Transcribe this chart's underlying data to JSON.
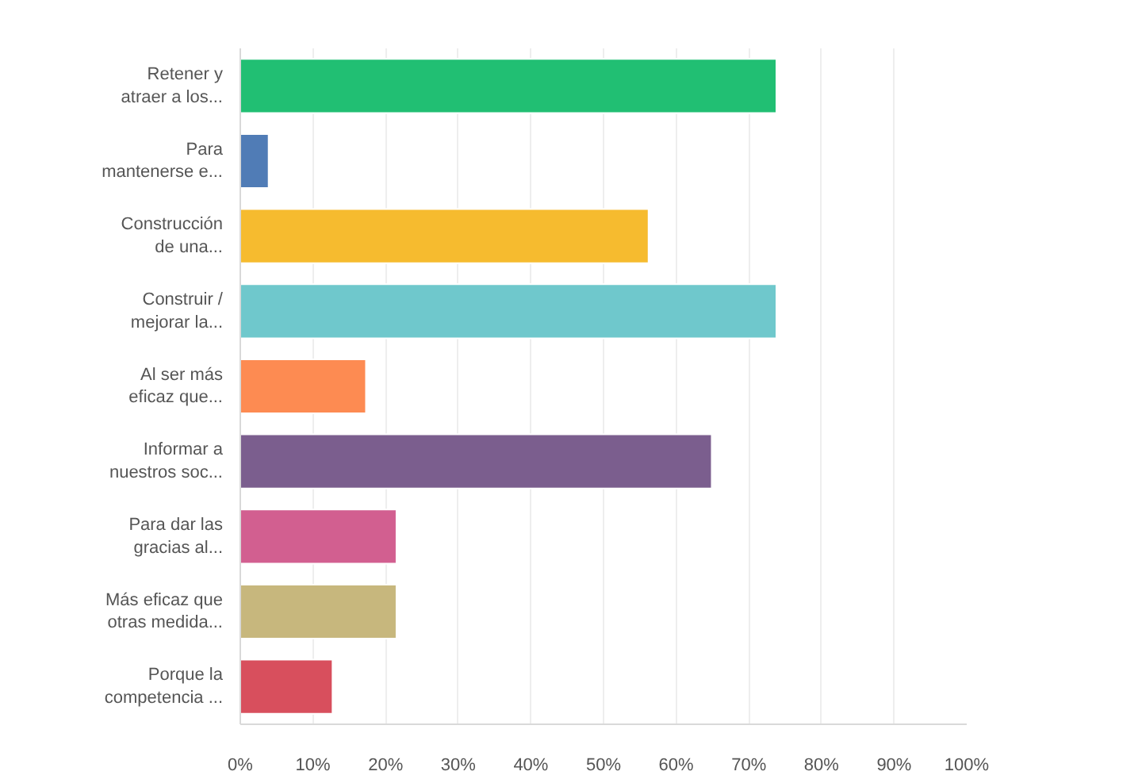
{
  "chart_data": {
    "type": "bar",
    "orientation": "horizontal",
    "categories": [
      "Retener y atraer a los...",
      "Para mantenerse e...",
      "Construcción de una...",
      "Construir / mejorar la...",
      "Al ser más eficaz que...",
      "Informar a nuestros soc...",
      "Para dar las gracias al...",
      "Más eficaz que otras medida...",
      "Porque la competencia ..."
    ],
    "values": [
      73.8,
      3.9,
      56.2,
      73.8,
      17.3,
      64.9,
      21.5,
      21.5,
      12.7
    ],
    "colors": [
      "#21bf73",
      "#507cb6",
      "#f6bb2f",
      "#6fc8cc",
      "#fd8b52",
      "#7b5e8e",
      "#d25f90",
      "#c7b77d",
      "#d84f5d"
    ],
    "xlim": [
      0,
      100
    ],
    "xticks": [
      {
        "value": 0,
        "label": "0%"
      },
      {
        "value": 10,
        "label": "10%"
      },
      {
        "value": 20,
        "label": "20%"
      },
      {
        "value": 30,
        "label": "30%"
      },
      {
        "value": 40,
        "label": "40%"
      },
      {
        "value": 50,
        "label": "50%"
      },
      {
        "value": 60,
        "label": "60%"
      },
      {
        "value": 70,
        "label": "70%"
      },
      {
        "value": 80,
        "label": "80%"
      },
      {
        "value": 90,
        "label": "90%"
      },
      {
        "value": 100,
        "label": "100%"
      }
    ],
    "grid": "x"
  }
}
